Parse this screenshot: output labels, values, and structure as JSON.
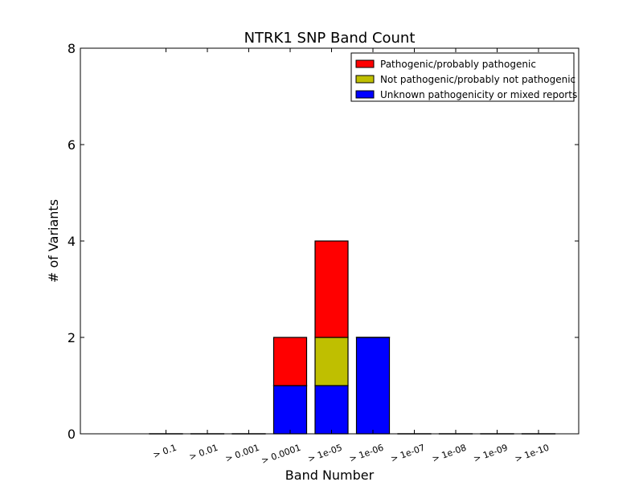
{
  "chart_data": {
    "type": "bar",
    "stacked": true,
    "title": "NTRK1 SNP Band Count",
    "xlabel": "Band Number",
    "ylabel": "# of Variants",
    "ylim": [
      0,
      8
    ],
    "yticks": [
      "0",
      "2",
      "4",
      "6",
      "8"
    ],
    "categories": [
      "> 0.1",
      "> 0.01",
      "> 0.001",
      "> 0.0001",
      "> 1e-05",
      "> 1e-06",
      "> 1e-07",
      "> 1e-08",
      "> 1e-09",
      "> 1e-10"
    ],
    "series": [
      {
        "name": "Unknown pathogenicity or mixed reports",
        "color": "#0000ff",
        "values": [
          0,
          0,
          0,
          1,
          1,
          2,
          0,
          0,
          0,
          0
        ]
      },
      {
        "name": "Not pathogenic/probably not pathogenic",
        "color": "#bfbf00",
        "values": [
          0,
          0,
          0,
          0,
          1,
          0,
          0,
          0,
          0,
          0
        ]
      },
      {
        "name": "Pathogenic/probably pathogenic",
        "color": "#ff0000",
        "values": [
          0,
          0,
          0,
          1,
          2,
          0,
          0,
          0,
          0,
          0
        ]
      }
    ],
    "legend": {
      "placement": "top-right",
      "order": [
        "Pathogenic/probably pathogenic",
        "Not pathogenic/probably not pathogenic",
        "Unknown pathogenicity or mixed reports"
      ]
    },
    "grid": false
  }
}
